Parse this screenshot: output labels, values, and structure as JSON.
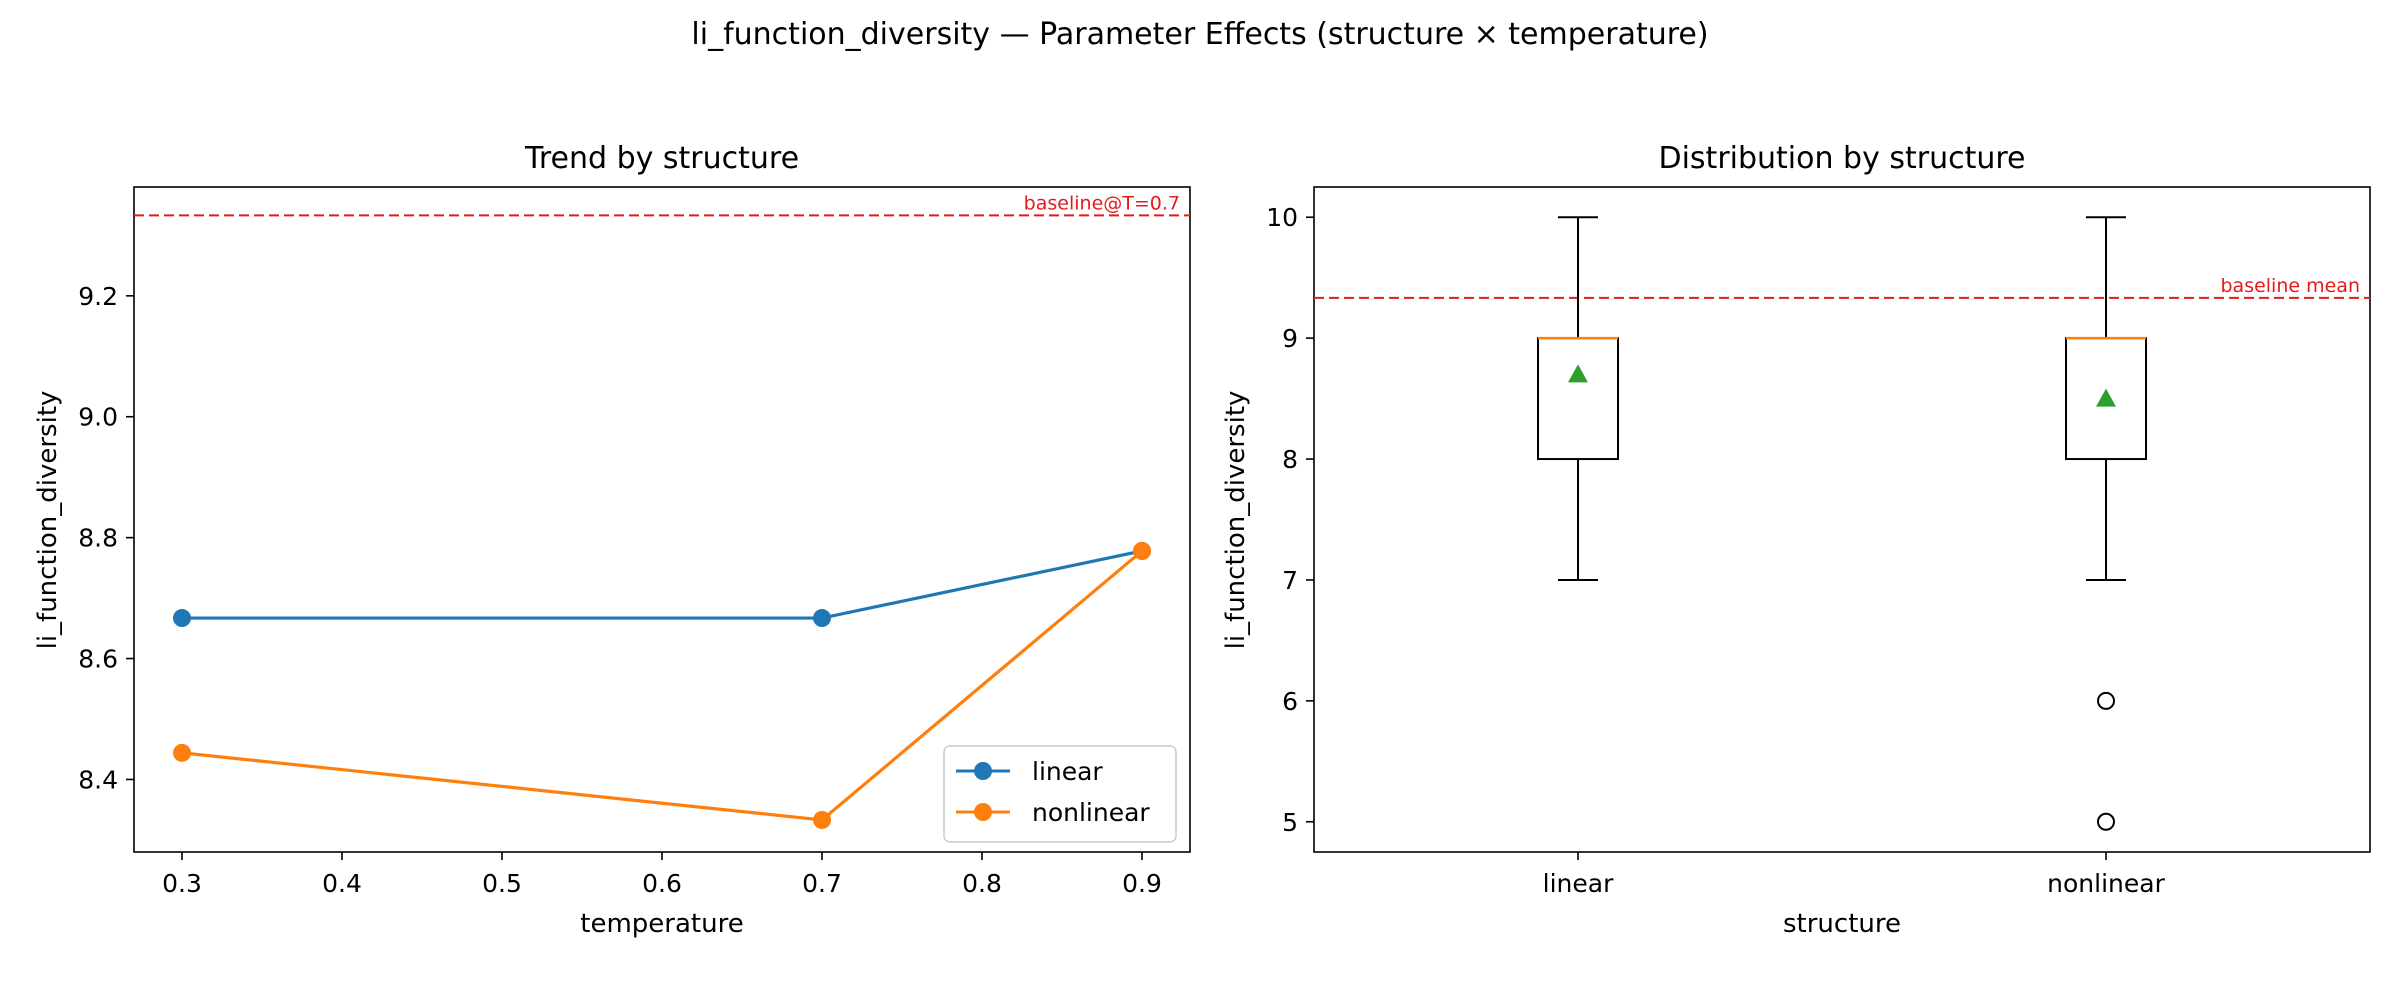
{
  "figure": {
    "suptitle": "li_function_diversity — Parameter Effects (structure × temperature)"
  },
  "chart_data": [
    {
      "type": "line",
      "title": "Trend by structure",
      "xlabel": "temperature",
      "ylabel": "li_function_diversity",
      "xlim": [
        0.27,
        0.93
      ],
      "ylim": [
        8.28,
        9.38
      ],
      "xticks": [
        0.3,
        0.4,
        0.5,
        0.6,
        0.7,
        0.8,
        0.9
      ],
      "yticks": [
        8.4,
        8.6,
        8.8,
        9.0,
        9.2
      ],
      "grid": false,
      "legend_position": "lower-right",
      "series": [
        {
          "name": "linear",
          "color": "#1f77b4",
          "x": [
            0.3,
            0.7,
            0.9
          ],
          "y": [
            8.667,
            8.667,
            8.778
          ]
        },
        {
          "name": "nonlinear",
          "color": "#ff7f0e",
          "x": [
            0.3,
            0.7,
            0.9
          ],
          "y": [
            8.444,
            8.333,
            8.778
          ]
        }
      ],
      "reference_line": {
        "y": 9.333,
        "label": "baseline@T=0.7",
        "color": "#e41a1c",
        "style": "dashed"
      }
    },
    {
      "type": "box",
      "title": "Distribution by structure",
      "xlabel": "structure",
      "ylabel": "li_function_diversity",
      "ylim": [
        4.75,
        10.25
      ],
      "yticks": [
        5,
        6,
        7,
        8,
        9,
        10
      ],
      "grid": false,
      "categories": [
        "linear",
        "nonlinear"
      ],
      "boxes": [
        {
          "category": "linear",
          "whisker_low": 7,
          "q1": 8,
          "median": 9,
          "q3": 9,
          "whisker_high": 10,
          "mean": 8.7,
          "outliers": []
        },
        {
          "category": "nonlinear",
          "whisker_low": 7,
          "q1": 8,
          "median": 9,
          "q3": 9,
          "whisker_high": 10,
          "mean": 8.5,
          "outliers": [
            6,
            5
          ]
        }
      ],
      "colors": {
        "box": "#000000",
        "median": "#ff7f0e",
        "mean": "#2ca02c"
      },
      "reference_line": {
        "y": 9.333,
        "label": "baseline mean",
        "color": "#e41a1c",
        "style": "dashed"
      }
    }
  ]
}
